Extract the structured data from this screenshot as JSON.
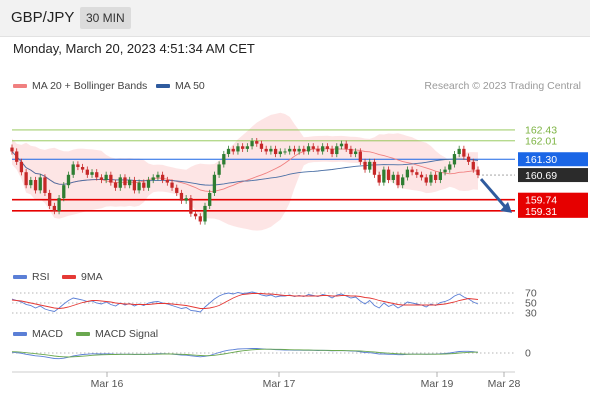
{
  "header": {
    "pair": "GBP/JPY",
    "timeframe": "30 MIN",
    "datetime": "Monday, March 20, 2023 4:51:34 AM CET"
  },
  "legend": {
    "ma20_bb": "MA 20 + Bollinger Bands",
    "ma50": "MA 50",
    "rsi": "RSI",
    "rsi_ma": "9MA",
    "macd": "MACD",
    "macd_signal": "MACD Signal",
    "source": "Research © 2023 Trading Central"
  },
  "colors": {
    "up": "#2e7d32",
    "down": "#c62828",
    "ma20": "#f08080",
    "ma50": "#4a6fa5",
    "band": "#fde0e0",
    "current_price": "#1a66e6",
    "support": "#e60000",
    "resistance": "#8bc34a",
    "rsi": "#5b7fd6",
    "rsi_ma": "#e53935",
    "macd": "#5b7fd6",
    "macd_signal": "#6aa84f",
    "arrow": "#2f5b9e"
  },
  "chart_data": [
    {
      "type": "candlestick",
      "name": "price",
      "x_ticks": [
        "Mar 16",
        "Mar 17",
        "Mar 19",
        "Mar 28"
      ],
      "ylim": [
        157.8,
        163.7
      ],
      "resistance_levels": [
        {
          "value": 162.43,
          "label": "162.43"
        },
        {
          "value": 162.01,
          "label": "162.01"
        }
      ],
      "current_price": {
        "value": 161.3,
        "label": "161.30"
      },
      "last_close": {
        "value": 160.69,
        "label": "160.69"
      },
      "support_levels": [
        {
          "value": 159.74,
          "label": "159.74"
        },
        {
          "value": 159.31,
          "label": "159.31"
        }
      ],
      "forecast": {
        "from": 160.69,
        "to": 159.31
      },
      "closes": [
        161.6,
        161.2,
        160.8,
        160.3,
        160.5,
        160.1,
        160.6,
        160.0,
        159.5,
        159.3,
        159.8,
        160.3,
        160.7,
        161.1,
        161.0,
        160.9,
        160.7,
        160.8,
        160.6,
        160.5,
        160.7,
        160.4,
        160.2,
        160.6,
        160.3,
        160.5,
        160.1,
        160.4,
        160.2,
        160.5,
        160.6,
        160.7,
        160.5,
        160.4,
        160.2,
        160.0,
        159.7,
        159.8,
        159.2,
        159.1,
        158.9,
        159.5,
        160.0,
        160.7,
        161.1,
        161.5,
        161.7,
        161.6,
        161.8,
        161.7,
        161.8,
        162.0,
        161.9,
        161.7,
        161.6,
        161.7,
        161.5,
        161.6,
        161.6,
        161.7,
        161.6,
        161.7,
        161.6,
        161.8,
        161.7,
        161.6,
        161.8,
        161.7,
        161.5,
        161.8,
        161.9,
        161.7,
        161.5,
        161.6,
        161.2,
        160.9,
        161.2,
        160.7,
        160.4,
        160.9,
        160.5,
        160.7,
        160.3,
        160.6,
        160.9,
        160.8,
        160.7,
        160.6,
        160.4,
        160.7,
        160.5,
        160.8,
        160.9,
        161.1,
        161.5,
        161.7,
        161.4,
        161.2,
        160.9,
        160.69
      ]
    },
    {
      "type": "line",
      "name": "RSI",
      "levels": [
        {
          "value": 70,
          "label": "70"
        },
        {
          "value": 50,
          "label": "50"
        },
        {
          "value": 30,
          "label": "30"
        }
      ],
      "ylim": [
        20,
        80
      ],
      "series": [
        {
          "name": "RSI",
          "values": [
            58,
            55,
            52,
            47,
            45,
            40,
            44,
            38,
            35,
            33,
            40,
            48,
            55,
            60,
            58,
            56,
            53,
            54,
            50,
            48,
            52,
            47,
            44,
            50,
            46,
            49,
            44,
            48,
            45,
            50,
            52,
            53,
            50,
            48,
            45,
            42,
            39,
            41,
            35,
            34,
            32,
            42,
            50,
            58,
            64,
            68,
            70,
            68,
            71,
            69,
            70,
            72,
            70,
            66,
            64,
            66,
            62,
            64,
            64,
            66,
            63,
            65,
            63,
            67,
            65,
            63,
            67,
            65,
            60,
            66,
            68,
            64,
            60,
            62,
            54,
            48,
            55,
            45,
            40,
            50,
            43,
            47,
            40,
            45,
            52,
            50,
            48,
            46,
            42,
            48,
            45,
            51,
            53,
            57,
            64,
            68,
            62,
            58,
            52,
            48
          ]
        },
        {
          "name": "9MA",
          "values": [
            56,
            55,
            54,
            52,
            50,
            48,
            46,
            44,
            42,
            40,
            39,
            40,
            42,
            45,
            48,
            51,
            53,
            55,
            55,
            54,
            53,
            52,
            50,
            49,
            48,
            48,
            47,
            47,
            47,
            47,
            48,
            49,
            49,
            49,
            48,
            47,
            46,
            45,
            43,
            41,
            39,
            39,
            40,
            42,
            45,
            50,
            55,
            60,
            64,
            67,
            68,
            69,
            69,
            69,
            68,
            68,
            67,
            66,
            65,
            65,
            64,
            64,
            64,
            64,
            64,
            64,
            65,
            65,
            64,
            64,
            65,
            65,
            64,
            64,
            63,
            61,
            60,
            58,
            55,
            53,
            51,
            49,
            47,
            46,
            46,
            46,
            46,
            46,
            46,
            46,
            46,
            47,
            48,
            50,
            52,
            55,
            57,
            59,
            58,
            57
          ]
        }
      ]
    },
    {
      "type": "line",
      "name": "MACD",
      "levels": [
        {
          "value": 0,
          "label": "0"
        }
      ],
      "ylim": [
        -0.6,
        0.6
      ],
      "series": [
        {
          "name": "MACD",
          "values": [
            0.05,
            0.02,
            -0.02,
            -0.08,
            -0.12,
            -0.17,
            -0.19,
            -0.23,
            -0.28,
            -0.33,
            -0.34,
            -0.31,
            -0.25,
            -0.18,
            -0.13,
            -0.09,
            -0.07,
            -0.05,
            -0.05,
            -0.06,
            -0.05,
            -0.06,
            -0.08,
            -0.07,
            -0.08,
            -0.07,
            -0.09,
            -0.08,
            -0.09,
            -0.08,
            -0.06,
            -0.04,
            -0.04,
            -0.05,
            -0.07,
            -0.09,
            -0.12,
            -0.13,
            -0.17,
            -0.2,
            -0.23,
            -0.2,
            -0.15,
            -0.06,
            0.03,
            0.11,
            0.17,
            0.2,
            0.24,
            0.25,
            0.26,
            0.27,
            0.27,
            0.25,
            0.23,
            0.22,
            0.2,
            0.19,
            0.18,
            0.18,
            0.17,
            0.17,
            0.16,
            0.17,
            0.16,
            0.15,
            0.16,
            0.15,
            0.13,
            0.14,
            0.15,
            0.14,
            0.12,
            0.11,
            0.07,
            0.03,
            0.02,
            -0.02,
            -0.06,
            -0.06,
            -0.08,
            -0.08,
            -0.1,
            -0.1,
            -0.08,
            -0.07,
            -0.07,
            -0.07,
            -0.08,
            -0.07,
            -0.07,
            -0.05,
            -0.03,
            0.0,
            0.05,
            0.09,
            0.1,
            0.1,
            0.08,
            0.04
          ]
        },
        {
          "name": "MACD Signal",
          "values": [
            0.08,
            0.07,
            0.05,
            0.02,
            -0.01,
            -0.04,
            -0.07,
            -0.1,
            -0.14,
            -0.18,
            -0.21,
            -0.23,
            -0.24,
            -0.23,
            -0.21,
            -0.19,
            -0.17,
            -0.14,
            -0.12,
            -0.11,
            -0.1,
            -0.09,
            -0.09,
            -0.08,
            -0.08,
            -0.08,
            -0.08,
            -0.08,
            -0.08,
            -0.08,
            -0.08,
            -0.07,
            -0.06,
            -0.06,
            -0.06,
            -0.07,
            -0.08,
            -0.09,
            -0.11,
            -0.13,
            -0.15,
            -0.16,
            -0.16,
            -0.14,
            -0.1,
            -0.06,
            -0.01,
            0.04,
            0.09,
            0.13,
            0.16,
            0.19,
            0.21,
            0.22,
            0.23,
            0.23,
            0.22,
            0.22,
            0.21,
            0.2,
            0.19,
            0.19,
            0.18,
            0.18,
            0.17,
            0.17,
            0.16,
            0.16,
            0.15,
            0.15,
            0.15,
            0.14,
            0.14,
            0.13,
            0.12,
            0.1,
            0.08,
            0.06,
            0.03,
            0.01,
            -0.01,
            -0.03,
            -0.05,
            -0.06,
            -0.07,
            -0.07,
            -0.07,
            -0.07,
            -0.07,
            -0.07,
            -0.07,
            -0.07,
            -0.06,
            -0.05,
            -0.03,
            0.0,
            0.02,
            0.04,
            0.05,
            0.05
          ]
        }
      ]
    }
  ]
}
